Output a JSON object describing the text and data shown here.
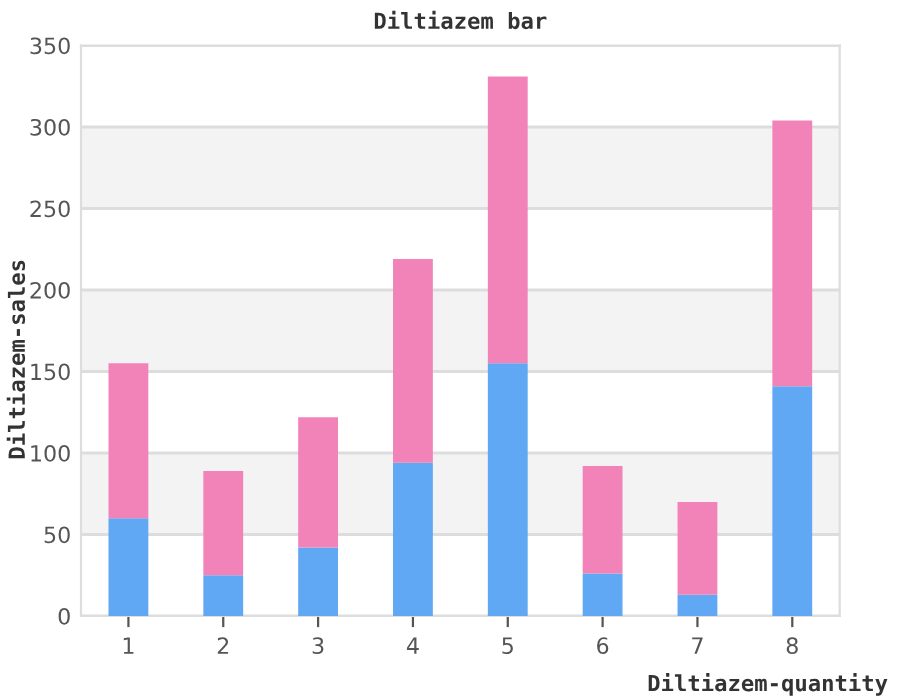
{
  "chart_data": {
    "type": "bar",
    "title": "Diltiazem bar",
    "xlabel": "Diltiazem-quantity",
    "ylabel": "Diltiazem-sales",
    "stacked": true,
    "categories": [
      "1",
      "2",
      "3",
      "4",
      "5",
      "6",
      "7",
      "8"
    ],
    "series": [
      {
        "color": "#60a8f4",
        "values": [
          60,
          25,
          42,
          94,
          155,
          26,
          13,
          141
        ]
      },
      {
        "color": "#f283b9",
        "values": [
          95,
          64,
          80,
          125,
          176,
          66,
          57,
          163
        ]
      }
    ],
    "ylim": [
      0,
      350
    ],
    "yticks": [
      0,
      50,
      100,
      150,
      200,
      250,
      300,
      350
    ],
    "grid": "y"
  }
}
